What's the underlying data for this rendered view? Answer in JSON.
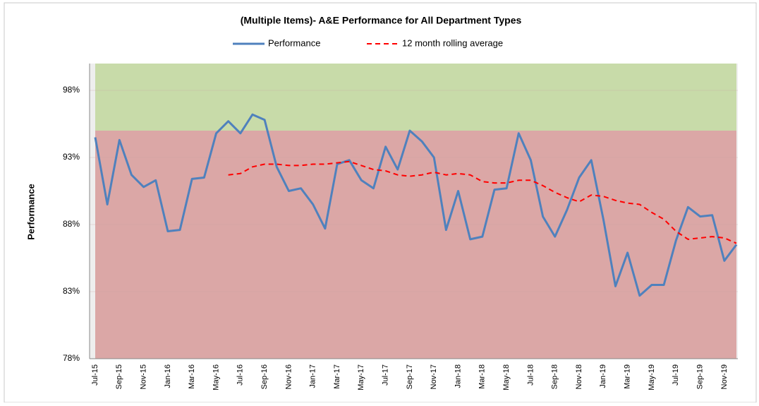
{
  "chart_data": {
    "type": "line",
    "title": "(Multiple Items)- A&E Performance for All Department Types",
    "ylabel": "Performance",
    "categories": [
      "Jul-15",
      null,
      "Sep-15",
      null,
      "Nov-15",
      null,
      "Jan-16",
      null,
      "Mar-16",
      null,
      "May-16",
      null,
      "Jul-16",
      null,
      "Sep-16",
      null,
      "Nov-16",
      null,
      "Jan-17",
      null,
      "Mar-17",
      null,
      "May-17",
      null,
      "Jul-17",
      null,
      "Sep-17",
      null,
      "Nov-17",
      null,
      "Jan-18",
      null,
      "Mar-18",
      null,
      "May-18",
      null,
      "Jul-18",
      null,
      "Sep-18",
      null,
      "Nov-18",
      null,
      "Jan-19",
      null,
      "Mar-19",
      null,
      "May-19",
      null,
      "Jul-19",
      null,
      "Sep-19",
      null,
      "Nov-19",
      null
    ],
    "series": [
      {
        "name": "Performance",
        "color": "#4f81bd",
        "dash": false,
        "values": [
          94.5,
          89.5,
          94.3,
          91.7,
          90.8,
          91.3,
          87.5,
          87.6,
          91.4,
          91.5,
          94.8,
          95.7,
          94.8,
          96.2,
          95.8,
          92.3,
          90.5,
          90.7,
          89.5,
          87.7,
          92.5,
          92.8,
          91.3,
          90.7,
          93.8,
          92.1,
          95.0,
          94.2,
          93.0,
          87.6,
          90.5,
          86.9,
          87.1,
          90.6,
          90.7,
          94.8,
          92.8,
          88.6,
          87.1,
          89.1,
          91.5,
          92.8,
          88.4,
          83.4,
          85.9,
          82.7,
          83.5,
          83.5,
          86.8,
          89.3,
          88.6,
          88.7,
          85.3,
          86.5
        ]
      },
      {
        "name": "12 month rolling average",
        "color": "#ff0000",
        "dash": true,
        "values": [
          null,
          null,
          null,
          null,
          null,
          null,
          null,
          null,
          null,
          null,
          null,
          91.7,
          91.8,
          92.3,
          92.5,
          92.5,
          92.4,
          92.4,
          92.5,
          92.5,
          92.6,
          92.7,
          92.4,
          92.1,
          92.0,
          91.7,
          91.6,
          91.7,
          91.9,
          91.7,
          91.8,
          91.7,
          91.2,
          91.1,
          91.1,
          91.3,
          91.3,
          90.9,
          90.4,
          90.0,
          89.7,
          90.2,
          90.1,
          89.8,
          89.6,
          89.5,
          88.9,
          88.4,
          87.5,
          86.9,
          87.0,
          87.1,
          87.0,
          86.6
        ]
      }
    ],
    "ylim": [
      78,
      100
    ],
    "yticks": [
      {
        "value": 78,
        "label": "78%"
      },
      {
        "value": 83,
        "label": "83%"
      },
      {
        "value": 88,
        "label": "88%"
      },
      {
        "value": 93,
        "label": "93%"
      },
      {
        "value": 98,
        "label": "98%"
      }
    ],
    "grid": true,
    "bands": [
      {
        "from": 78,
        "to": 95,
        "color": "#dba7a6"
      },
      {
        "from": 95,
        "to": 100,
        "color": "#c8dba9"
      }
    ],
    "legend": "top"
  }
}
